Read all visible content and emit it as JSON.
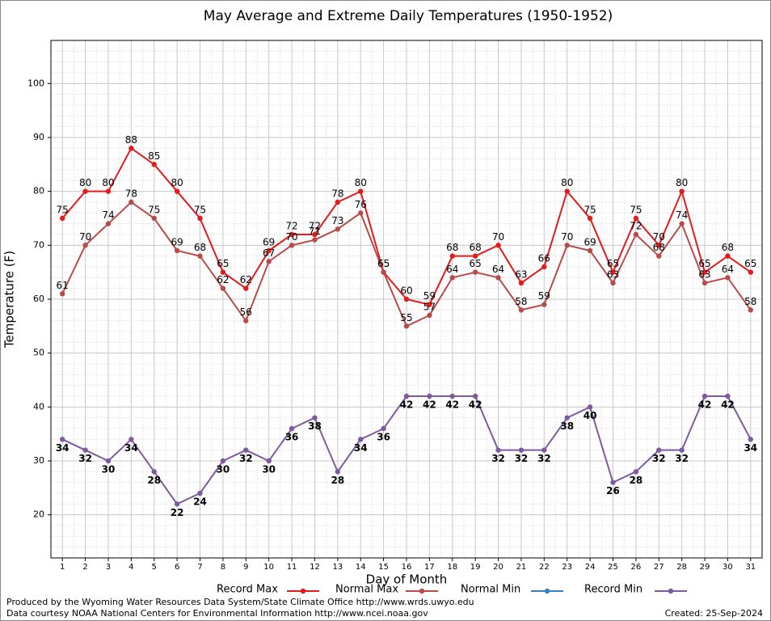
{
  "chart_data": {
    "type": "line",
    "title": "May Average and Extreme Daily Temperatures (1950-1952)",
    "xlabel": "Day of Month",
    "ylabel": "Temperature (F)",
    "x": [
      1,
      2,
      3,
      4,
      5,
      6,
      7,
      8,
      9,
      10,
      11,
      12,
      13,
      14,
      15,
      16,
      17,
      18,
      19,
      20,
      21,
      22,
      23,
      24,
      25,
      26,
      27,
      28,
      29,
      30,
      31
    ],
    "xlim": [
      0.5,
      31.5
    ],
    "xticks": [
      1,
      2,
      3,
      4,
      5,
      6,
      7,
      8,
      9,
      10,
      11,
      12,
      13,
      14,
      15,
      16,
      17,
      18,
      19,
      20,
      21,
      22,
      23,
      24,
      25,
      26,
      27,
      28,
      29,
      30,
      31
    ],
    "ylim": [
      12,
      108
    ],
    "yticks": [
      20,
      30,
      40,
      50,
      60,
      70,
      80,
      90,
      100
    ],
    "grid": true,
    "legend": "bottom",
    "series": [
      {
        "name": "Record Max",
        "color": "#e41a1c",
        "values": [
          75,
          80,
          80,
          88,
          85,
          80,
          75,
          65,
          62,
          69,
          72,
          72,
          78,
          80,
          65,
          60,
          59,
          68,
          68,
          70,
          63,
          66,
          80,
          75,
          65,
          75,
          70,
          80,
          65,
          68,
          65
        ]
      },
      {
        "name": "Normal Max",
        "color": "#b84a4a",
        "values": [
          61,
          70,
          74,
          78,
          75,
          69,
          68,
          62,
          56,
          67,
          70,
          71,
          73,
          76,
          65,
          55,
          57,
          64,
          65,
          64,
          58,
          59,
          70,
          69,
          63,
          72,
          68,
          74,
          63,
          64,
          58
        ]
      },
      {
        "name": "Normal Min",
        "color": "#3a7fbf",
        "values": [
          null,
          null,
          null,
          null,
          null,
          null,
          null,
          null,
          null,
          null,
          null,
          null,
          null,
          null,
          null,
          null,
          null,
          null,
          null,
          null,
          null,
          null,
          null,
          null,
          null,
          null,
          null,
          null,
          null,
          null,
          null
        ]
      },
      {
        "name": "Record Min",
        "color": "#7d5a9e",
        "values": [
          34,
          32,
          30,
          34,
          28,
          22,
          24,
          30,
          32,
          30,
          36,
          38,
          28,
          34,
          36,
          42,
          42,
          42,
          42,
          32,
          32,
          32,
          38,
          40,
          26,
          28,
          32,
          32,
          42,
          42,
          34
        ]
      }
    ],
    "footer": [
      "Produced by the Wyoming Water Resources Data System/State Climate Office http://www.wrds.uwyo.edu",
      "Data courtesy NOAA National Centers for Environmental Information http://www.ncei.noaa.gov"
    ],
    "created": "Created: 25-Sep-2024"
  }
}
